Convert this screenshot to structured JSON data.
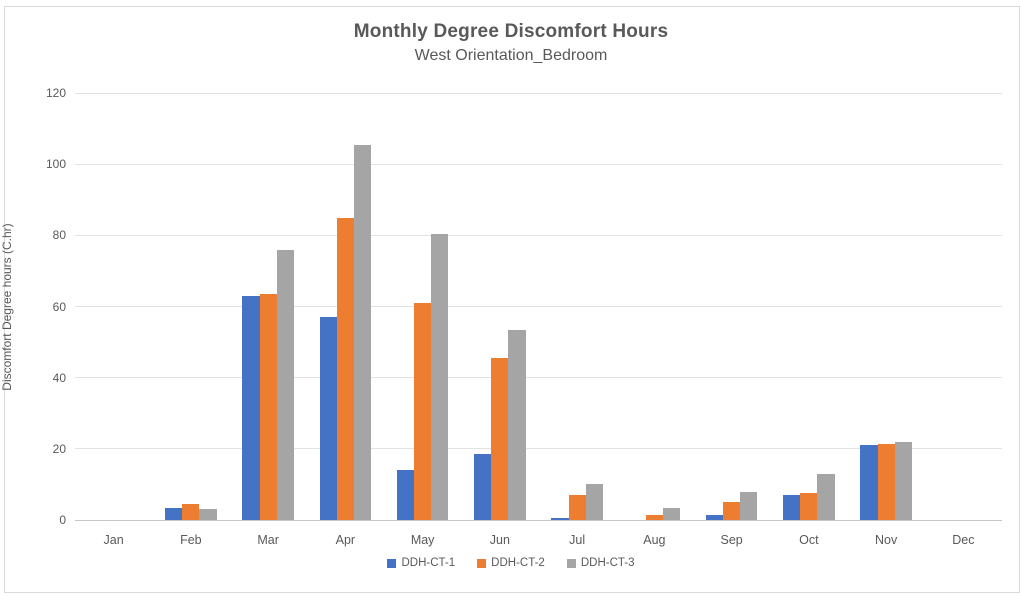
{
  "chart_data": {
    "type": "bar",
    "title": "Monthly Degree Discomfort Hours",
    "subtitle": "West Orientation_Bedroom",
    "xlabel": "",
    "ylabel": "Discomfort Degree hours (C.hr)",
    "ylim": [
      0,
      120
    ],
    "yticks": [
      0,
      20,
      40,
      60,
      80,
      100,
      120
    ],
    "grid": true,
    "legend_position": "bottom",
    "categories": [
      "Jan",
      "Feb",
      "Mar",
      "Apr",
      "May",
      "Jun",
      "Jul",
      "Aug",
      "Sep",
      "Oct",
      "Nov",
      "Dec"
    ],
    "series": [
      {
        "name": "DDH-CT-1",
        "color": "#4472C4",
        "values": [
          0,
          3.5,
          63,
          57,
          14,
          18.5,
          0.5,
          0,
          1.5,
          7,
          21,
          0
        ]
      },
      {
        "name": "DDH-CT-2",
        "color": "#ED7D31",
        "values": [
          0,
          4.5,
          63.5,
          85,
          61,
          45.5,
          7,
          1.5,
          5,
          7.5,
          21.5,
          0
        ]
      },
      {
        "name": "DDH-CT-3",
        "color": "#A5A5A5",
        "values": [
          0,
          3,
          76,
          105.5,
          80.5,
          53.5,
          10,
          3.5,
          8,
          13,
          22,
          0
        ]
      }
    ]
  },
  "colors": {
    "gridline": "#e2e2e2",
    "axis_line": "#c6c6c6",
    "text": "#595959"
  }
}
